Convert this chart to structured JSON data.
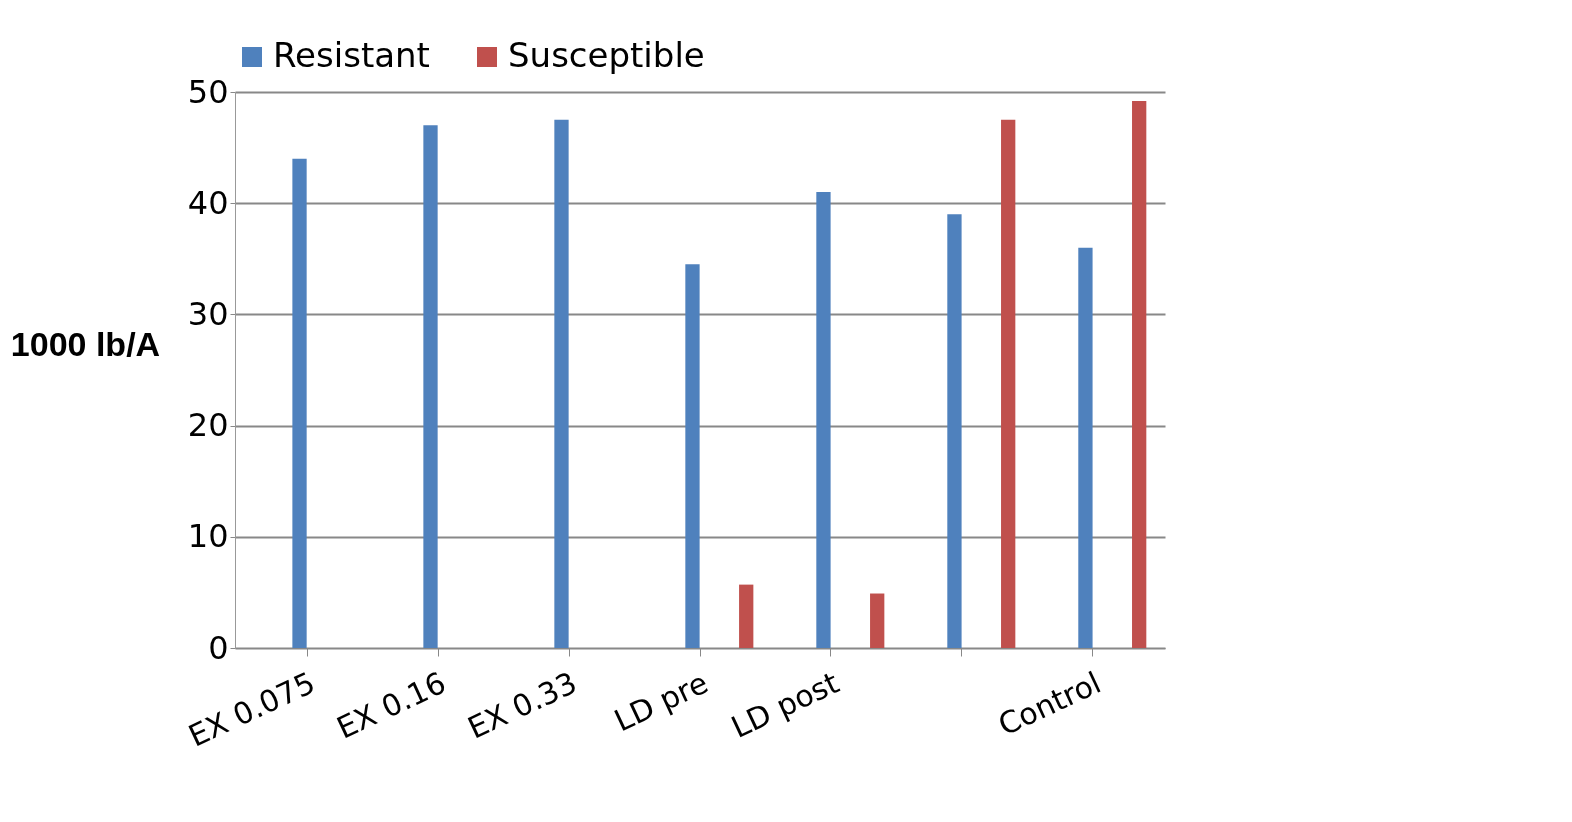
{
  "chart_data": {
    "type": "bar",
    "ylabel": "1000 lb/A",
    "categories": [
      "EX 0.075",
      "EX 0.16",
      "EX 0.33",
      "LD pre",
      "LD post",
      null,
      "Control"
    ],
    "series": [
      {
        "name": "Resistant",
        "color": "#4f81bd",
        "values": [
          44,
          47,
          47.5,
          34.5,
          41,
          39,
          36
        ]
      },
      {
        "name": "Susceptible",
        "color": "#c0504d",
        "values": [
          0,
          0,
          0,
          5.7,
          4.9,
          47.5,
          49.2
        ]
      }
    ],
    "ylim": [
      0,
      50
    ],
    "yticks": [
      0,
      10,
      20,
      30,
      40,
      50
    ],
    "grid": "y",
    "legend": "top"
  }
}
